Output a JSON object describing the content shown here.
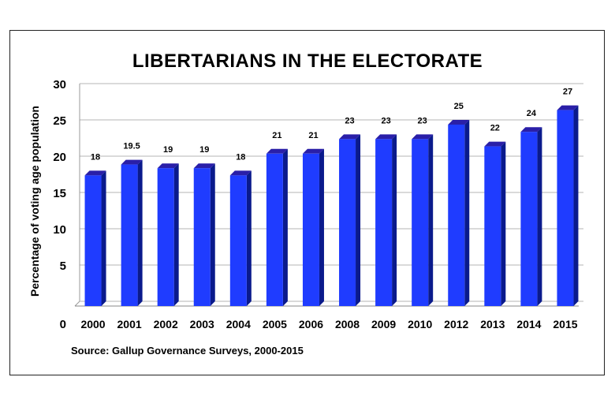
{
  "chart_data": {
    "type": "bar",
    "title": "LIBERTARIANS IN THE ELECTORATE",
    "ylabel": "Percentage of voting age population",
    "xlabel": "",
    "source": "Source: Gallup Governance Surveys, 2000-2015",
    "categories": [
      "2000",
      "2001",
      "2002",
      "2003",
      "2004",
      "2005",
      "2006",
      "2008",
      "2009",
      "2010",
      "2012",
      "2013",
      "2014",
      "2015"
    ],
    "values": [
      18,
      19.5,
      19,
      19,
      18,
      21,
      21,
      23,
      23,
      23,
      25,
      22,
      24,
      27
    ],
    "value_labels": [
      "18",
      "19.5",
      "19",
      "19",
      "18",
      "21",
      "21",
      "23",
      "23",
      "23",
      "25",
      "22",
      "24",
      "27"
    ],
    "ylim": [
      0,
      30
    ],
    "yticks": [
      0,
      5,
      10,
      15,
      20,
      25,
      30
    ],
    "grid": true,
    "bar_color": "#1f3cff",
    "bar_side_color": "#0a1a8c",
    "bar_top_color": "#2a1fa8"
  }
}
